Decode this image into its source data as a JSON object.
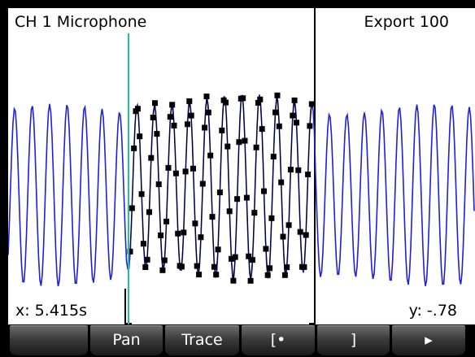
{
  "plot": {
    "channel_label": "CH 1 Microphone",
    "export_label": "Export 100",
    "x_readout": "x: 5.415s",
    "y_readout": "y: -.78"
  },
  "colors": {
    "waveform": "#2020d8",
    "export_trace": "#000000",
    "cursor": "#20c0a0",
    "background": "#ffffff"
  },
  "menu": {
    "keys": [
      "",
      "Pan",
      "Trace",
      "[•",
      "]",
      "▸"
    ]
  }
}
